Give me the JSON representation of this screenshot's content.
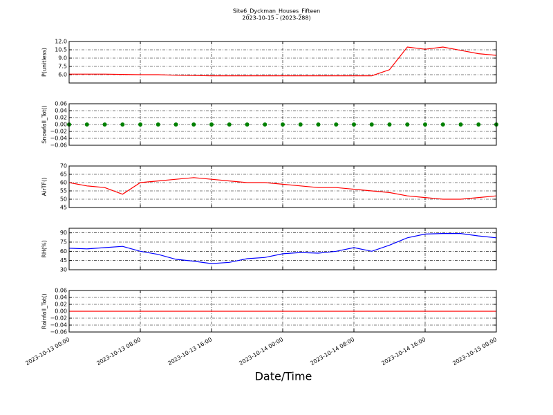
{
  "chart_data": [
    {
      "type": "line",
      "title": "Site6_Dyckman_Houses_Fifteen",
      "subtitle": "2023-10-15 - (2023-288)",
      "ylabel": "P(unitless)",
      "color": "#ff0000",
      "grid": true,
      "x": [
        "2023-10-13 00:00",
        "2023-10-13 02:00",
        "2023-10-13 04:00",
        "2023-10-13 06:00",
        "2023-10-13 08:00",
        "2023-10-13 10:00",
        "2023-10-13 12:00",
        "2023-10-13 14:00",
        "2023-10-13 16:00",
        "2023-10-13 18:00",
        "2023-10-13 20:00",
        "2023-10-13 22:00",
        "2023-10-14 00:00",
        "2023-10-14 02:00",
        "2023-10-14 04:00",
        "2023-10-14 06:00",
        "2023-10-14 08:00",
        "2023-10-14 10:00",
        "2023-10-14 12:00",
        "2023-10-14 14:00",
        "2023-10-14 16:00",
        "2023-10-14 18:00",
        "2023-10-14 20:00",
        "2023-10-14 22:00",
        "2023-10-15 00:00"
      ],
      "values": [
        6.1,
        6.1,
        6.1,
        6.05,
        6.0,
        6.0,
        5.9,
        5.85,
        5.8,
        5.8,
        5.8,
        5.8,
        5.8,
        5.8,
        5.8,
        5.8,
        5.8,
        5.8,
        6.9,
        11.0,
        10.6,
        11.0,
        10.4,
        9.8,
        9.5
      ],
      "ylim": [
        4.5,
        12
      ],
      "yticks": [
        {
          "value": 6,
          "label": "6.0"
        },
        {
          "value": 7.5,
          "label": "7.5"
        },
        {
          "value": 9,
          "label": "9.0"
        },
        {
          "value": 10.5,
          "label": "10.5"
        },
        {
          "value": 12,
          "label": "12.0"
        }
      ]
    },
    {
      "type": "scatter",
      "ylabel": "Snowfall_Tot()",
      "color": "#008000",
      "grid": true,
      "x": [
        "2023-10-13 00:00",
        "2023-10-13 02:00",
        "2023-10-13 04:00",
        "2023-10-13 06:00",
        "2023-10-13 08:00",
        "2023-10-13 10:00",
        "2023-10-13 12:00",
        "2023-10-13 14:00",
        "2023-10-13 16:00",
        "2023-10-13 18:00",
        "2023-10-13 20:00",
        "2023-10-13 22:00",
        "2023-10-14 00:00",
        "2023-10-14 02:00",
        "2023-10-14 04:00",
        "2023-10-14 06:00",
        "2023-10-14 08:00",
        "2023-10-14 10:00",
        "2023-10-14 12:00",
        "2023-10-14 14:00",
        "2023-10-14 16:00",
        "2023-10-14 18:00",
        "2023-10-14 20:00",
        "2023-10-14 22:00",
        "2023-10-15 00:00"
      ],
      "values": [
        0,
        0,
        0,
        0,
        0,
        0,
        0,
        0,
        0,
        0,
        0,
        0,
        0,
        0,
        0,
        0,
        0,
        0,
        0,
        0,
        0,
        0,
        0,
        0,
        0
      ],
      "ylim": [
        -0.06,
        0.06
      ],
      "yticks": [
        {
          "value": -0.06,
          "label": "−0.06"
        },
        {
          "value": -0.04,
          "label": "−0.04"
        },
        {
          "value": -0.02,
          "label": "−0.02"
        },
        {
          "value": 0,
          "label": "0.00"
        },
        {
          "value": 0.02,
          "label": "0.02"
        },
        {
          "value": 0.04,
          "label": "0.04"
        },
        {
          "value": 0.06,
          "label": "0.06"
        }
      ]
    },
    {
      "type": "line",
      "ylabel": "AirTF()",
      "color": "#ff0000",
      "grid": true,
      "x": [
        "2023-10-13 00:00",
        "2023-10-13 02:00",
        "2023-10-13 04:00",
        "2023-10-13 06:00",
        "2023-10-13 08:00",
        "2023-10-13 10:00",
        "2023-10-13 12:00",
        "2023-10-13 14:00",
        "2023-10-13 16:00",
        "2023-10-13 18:00",
        "2023-10-13 20:00",
        "2023-10-13 22:00",
        "2023-10-14 00:00",
        "2023-10-14 02:00",
        "2023-10-14 04:00",
        "2023-10-14 06:00",
        "2023-10-14 08:00",
        "2023-10-14 10:00",
        "2023-10-14 12:00",
        "2023-10-14 14:00",
        "2023-10-14 16:00",
        "2023-10-14 18:00",
        "2023-10-14 20:00",
        "2023-10-14 22:00",
        "2023-10-15 00:00"
      ],
      "values": [
        60,
        58,
        57,
        53,
        60,
        61,
        62,
        63,
        62,
        61,
        60,
        60,
        59,
        58,
        57,
        57,
        56,
        55,
        54,
        52,
        51,
        50,
        50,
        51,
        52
      ],
      "ylim": [
        45,
        70
      ],
      "yticks": [
        45,
        50,
        55,
        60,
        65,
        70
      ]
    },
    {
      "type": "line",
      "ylabel": "RH(%)",
      "color": "#0000ff",
      "grid": true,
      "x": [
        "2023-10-13 00:00",
        "2023-10-13 02:00",
        "2023-10-13 04:00",
        "2023-10-13 06:00",
        "2023-10-13 08:00",
        "2023-10-13 10:00",
        "2023-10-13 12:00",
        "2023-10-13 14:00",
        "2023-10-13 16:00",
        "2023-10-13 18:00",
        "2023-10-13 20:00",
        "2023-10-13 22:00",
        "2023-10-14 00:00",
        "2023-10-14 02:00",
        "2023-10-14 04:00",
        "2023-10-14 06:00",
        "2023-10-14 08:00",
        "2023-10-14 10:00",
        "2023-10-14 12:00",
        "2023-10-14 14:00",
        "2023-10-14 16:00",
        "2023-10-14 18:00",
        "2023-10-14 20:00",
        "2023-10-14 22:00",
        "2023-10-15 00:00"
      ],
      "values": [
        65,
        64,
        66,
        68,
        60,
        55,
        47,
        44,
        40,
        42,
        48,
        50,
        56,
        58,
        57,
        60,
        66,
        60,
        70,
        82,
        88,
        89,
        89,
        85,
        82
      ],
      "ylim": [
        30,
        97.5
      ],
      "yticks": [
        30,
        45,
        60,
        75,
        90
      ]
    },
    {
      "type": "line",
      "ylabel": "Rainfall_Tot()",
      "xlabel": "Date/Time",
      "color": "#ff0000",
      "grid": true,
      "x": [
        "2023-10-13 00:00",
        "2023-10-13 02:00",
        "2023-10-13 04:00",
        "2023-10-13 06:00",
        "2023-10-13 08:00",
        "2023-10-13 10:00",
        "2023-10-13 12:00",
        "2023-10-13 14:00",
        "2023-10-13 16:00",
        "2023-10-13 18:00",
        "2023-10-13 20:00",
        "2023-10-13 22:00",
        "2023-10-14 00:00",
        "2023-10-14 02:00",
        "2023-10-14 04:00",
        "2023-10-14 06:00",
        "2023-10-14 08:00",
        "2023-10-14 10:00",
        "2023-10-14 12:00",
        "2023-10-14 14:00",
        "2023-10-14 16:00",
        "2023-10-14 18:00",
        "2023-10-14 20:00",
        "2023-10-14 22:00",
        "2023-10-15 00:00"
      ],
      "values": [
        0,
        0,
        0,
        0,
        0,
        0,
        0,
        0,
        0,
        0,
        0,
        0,
        0,
        0,
        0,
        0,
        0,
        0,
        0,
        0,
        0,
        0,
        0,
        0,
        0
      ],
      "ylim": [
        -0.06,
        0.06
      ],
      "yticks": [
        {
          "value": -0.06,
          "label": "−0.06"
        },
        {
          "value": -0.04,
          "label": "−0.04"
        },
        {
          "value": -0.02,
          "label": "−0.02"
        },
        {
          "value": 0,
          "label": "0.00"
        },
        {
          "value": 0.02,
          "label": "0.02"
        },
        {
          "value": 0.04,
          "label": "0.04"
        },
        {
          "value": 0.06,
          "label": "0.06"
        }
      ],
      "xlim": [
        "2023-10-13 00:00",
        "2023-10-15 00:00"
      ],
      "xticks": [
        "2023-10-13 00:00",
        "2023-10-13 08:00",
        "2023-10-13 16:00",
        "2023-10-14 00:00",
        "2023-10-14 08:00",
        "2023-10-14 16:00",
        "2023-10-15 00:00"
      ]
    }
  ]
}
